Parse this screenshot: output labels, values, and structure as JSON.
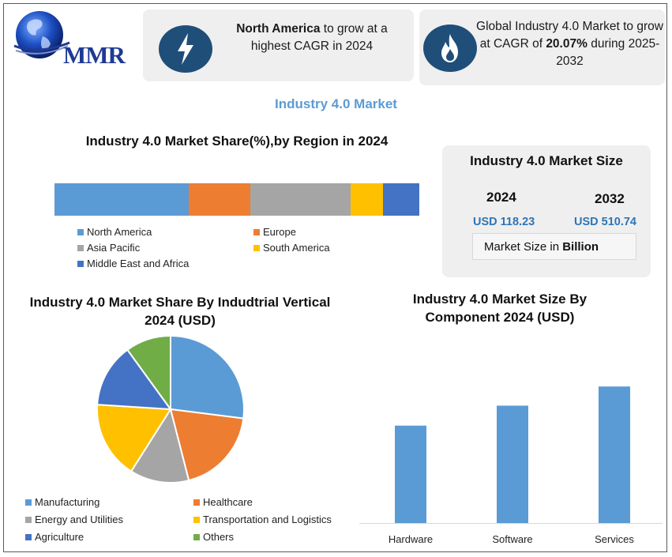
{
  "brand": {
    "logo_text": "MMR"
  },
  "highlight_cards": [
    {
      "icon": "lightning-bolt-icon",
      "text_bold": "North America",
      "text_rest": " to grow at a highest CAGR in 2024"
    },
    {
      "icon": "flame-icon",
      "text_lead": "Global Industry 4.0 Market to grow at CAGR of ",
      "text_bold": "20.07%",
      "text_tail": " during 2025-2032"
    }
  ],
  "page_title": "Industry 4.0 Market",
  "market_size": {
    "title": "Industry 4.0 Market Size",
    "year_a": "2024",
    "year_b": "2032",
    "value_a": "USD 118.23",
    "value_b": "USD 510.74",
    "unit_label": "Market Size in ",
    "unit_bold": "Billion"
  },
  "colors": {
    "blue_light": "#5b9bd5",
    "orange": "#ed7d31",
    "gray": "#a5a5a5",
    "yellow": "#ffc000",
    "blue_dark": "#4472c4",
    "green": "#70ad47",
    "badge": "#1f4e79",
    "accent_text": "#2e75b6"
  },
  "chart_data": [
    {
      "type": "bar",
      "orientation": "horizontal-stacked",
      "title": "Industry 4.0 Market Share(%),by Region in 2024",
      "categories": [
        "North America",
        "Europe",
        "Asia Pacific",
        "South America",
        "Middle East and Africa"
      ],
      "values": [
        37,
        17,
        27.5,
        9,
        10
      ],
      "unit": "%",
      "colors": [
        "#5b9bd5",
        "#ed7d31",
        "#a5a5a5",
        "#ffc000",
        "#4472c4"
      ],
      "legend": "bottom"
    },
    {
      "type": "pie",
      "title": "Industry 4.0 Market Share By Indudtrial Vertical 2024  (USD)",
      "categories": [
        "Manufacturing",
        "Healthcare",
        "Energy and Utilities",
        "Transportation and Logistics",
        "Agriculture",
        "Others"
      ],
      "values": [
        27,
        19,
        13,
        17,
        14,
        10
      ],
      "unit": "%",
      "colors": [
        "#5b9bd5",
        "#ed7d31",
        "#a5a5a5",
        "#ffc000",
        "#4472c4",
        "#70ad47"
      ],
      "legend": "bottom"
    },
    {
      "type": "bar",
      "title": "Industry 4.0 Market Size By Component  2024  (USD)",
      "categories": [
        "Hardware",
        "Software",
        "Services"
      ],
      "values": [
        122,
        147,
        171
      ],
      "ylim": [
        0,
        190
      ],
      "grid": false,
      "color": "#5b9bd5"
    }
  ]
}
